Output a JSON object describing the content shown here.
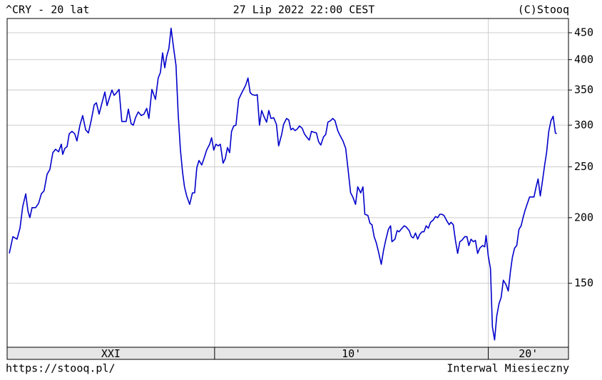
{
  "chart_data": {
    "type": "line",
    "title": "^CRY - 20 lat",
    "date": "27 Lip 2022 22:00 CEST",
    "source": "(C)Stooq",
    "url": "https://stooq.pl/",
    "interval": "Interwal Miesieczny",
    "color": "#0000cc",
    "log_scale": true,
    "grid": true,
    "xlim": [
      2002.42,
      2022.93
    ],
    "xticks": [
      {
        "value": 2000,
        "label": "XXI"
      },
      {
        "value": 2010,
        "label": "10'"
      },
      {
        "value": 2020,
        "label": "20'"
      }
    ],
    "ylim": [
      113.3,
      479
    ],
    "yticks": [
      150,
      200,
      250,
      300,
      350,
      400,
      450
    ],
    "x": [
      2002.5,
      2002.63,
      2002.78,
      2002.89,
      2002.99,
      2003.1,
      2003.18,
      2003.25,
      2003.33,
      2003.46,
      2003.57,
      2003.67,
      2003.77,
      2003.88,
      2003.98,
      2004.09,
      2004.19,
      2004.3,
      2004.4,
      2004.45,
      2004.53,
      2004.61,
      2004.69,
      2004.79,
      2004.89,
      2004.97,
      2005.08,
      2005.18,
      2005.29,
      2005.39,
      2005.49,
      2005.6,
      2005.68,
      2005.78,
      2005.88,
      2005.99,
      2006.07,
      2006.14,
      2006.25,
      2006.33,
      2006.4,
      2006.51,
      2006.61,
      2006.69,
      2006.77,
      2006.85,
      2006.95,
      2007.03,
      2007.11,
      2007.21,
      2007.32,
      2007.42,
      2007.52,
      2007.6,
      2007.71,
      2007.84,
      2007.94,
      2008.02,
      2008.1,
      2008.18,
      2008.25,
      2008.33,
      2008.41,
      2008.51,
      2008.59,
      2008.67,
      2008.75,
      2008.83,
      2008.9,
      2008.98,
      2009.09,
      2009.19,
      2009.27,
      2009.35,
      2009.43,
      2009.53,
      2009.61,
      2009.71,
      2009.82,
      2009.89,
      2009.97,
      2010.05,
      2010.13,
      2010.21,
      2010.31,
      2010.39,
      2010.47,
      2010.55,
      2010.62,
      2010.7,
      2010.78,
      2010.88,
      2010.96,
      2011.07,
      2011.14,
      2011.22,
      2011.3,
      2011.38,
      2011.48,
      2011.56,
      2011.64,
      2011.72,
      2011.8,
      2011.9,
      2011.98,
      2012.06,
      2012.16,
      2012.26,
      2012.34,
      2012.45,
      2012.52,
      2012.63,
      2012.71,
      2012.79,
      2012.86,
      2012.94,
      2013.02,
      2013.1,
      2013.2,
      2013.28,
      2013.36,
      2013.46,
      2013.54,
      2013.62,
      2013.72,
      2013.8,
      2013.88,
      2013.98,
      2014.06,
      2014.14,
      2014.24,
      2014.32,
      2014.4,
      2014.5,
      2014.58,
      2014.69,
      2014.79,
      2014.87,
      2014.97,
      2015.05,
      2015.15,
      2015.23,
      2015.34,
      2015.42,
      2015.49,
      2015.6,
      2015.68,
      2015.75,
      2015.83,
      2015.91,
      2015.99,
      2016.09,
      2016.17,
      2016.25,
      2016.35,
      2016.43,
      2016.48,
      2016.59,
      2016.67,
      2016.74,
      2016.85,
      2016.93,
      2017.0,
      2017.11,
      2017.19,
      2017.26,
      2017.34,
      2017.42,
      2017.5,
      2017.58,
      2017.65,
      2017.73,
      2017.81,
      2017.89,
      2017.99,
      2018.07,
      2018.15,
      2018.23,
      2018.3,
      2018.38,
      2018.49,
      2018.57,
      2018.64,
      2018.72,
      2018.8,
      2018.88,
      2018.96,
      2019.03,
      2019.14,
      2019.22,
      2019.29,
      2019.37,
      2019.45,
      2019.53,
      2019.61,
      2019.69,
      2019.79,
      2019.87,
      2019.92,
      2020.0,
      2020.08,
      2020.15,
      2020.23,
      2020.31,
      2020.39,
      2020.47,
      2020.55,
      2020.65,
      2020.73,
      2020.81,
      2020.88,
      2020.96,
      2021.04,
      2021.12,
      2021.2,
      2021.27,
      2021.35,
      2021.43,
      2021.51,
      2021.59,
      2021.67,
      2021.74,
      2021.82,
      2021.9,
      2021.98,
      2022.06,
      2022.13,
      2022.21,
      2022.29,
      2022.37,
      2022.45,
      2022.5
    ],
    "values": [
      171,
      184,
      182,
      191,
      210,
      222,
      206,
      200,
      209,
      209,
      213,
      222,
      225,
      242,
      247,
      266,
      270,
      267,
      276,
      264,
      271,
      273,
      289,
      292,
      289,
      280,
      300,
      313,
      294,
      290,
      306,
      328,
      331,
      315,
      330,
      347,
      327,
      336,
      350,
      342,
      345,
      351,
      305,
      305,
      305,
      322,
      302,
      300,
      310,
      318,
      313,
      315,
      323,
      309,
      351,
      336,
      369,
      378,
      412,
      386,
      406,
      420,
      459,
      418,
      390,
      315,
      270,
      244,
      229,
      220,
      212,
      223,
      223,
      249,
      257,
      252,
      259,
      269,
      276,
      284,
      269,
      276,
      274,
      276,
      254,
      259,
      272,
      266,
      292,
      299,
      300,
      336,
      343,
      352,
      358,
      369,
      346,
      343,
      342,
      343,
      300,
      320,
      312,
      304,
      320,
      309,
      310,
      301,
      274,
      288,
      301,
      309,
      307,
      294,
      296,
      293,
      295,
      299,
      296,
      289,
      285,
      281,
      292,
      291,
      290,
      279,
      275,
      285,
      288,
      304,
      306,
      309,
      306,
      293,
      287,
      280,
      271,
      249,
      223,
      219,
      212,
      229,
      223,
      229,
      203,
      202,
      195,
      194,
      184,
      179,
      172,
      163,
      173,
      181,
      190,
      193,
      180,
      182,
      189,
      188,
      191,
      193,
      192,
      189,
      184,
      183,
      187,
      182,
      186,
      188,
      188,
      193,
      191,
      196,
      198,
      201,
      200,
      203,
      203,
      202,
      197,
      194,
      196,
      194,
      181,
      171,
      180,
      181,
      184,
      184,
      177,
      182,
      180,
      181,
      171,
      175,
      177,
      176,
      185,
      169,
      160,
      124,
      117,
      130,
      137,
      141,
      152,
      149,
      145,
      158,
      168,
      175,
      177,
      190,
      193,
      200,
      207,
      213,
      219,
      219,
      219,
      228,
      237,
      220,
      235,
      252,
      266,
      292,
      306,
      312,
      290,
      289
    ]
  }
}
